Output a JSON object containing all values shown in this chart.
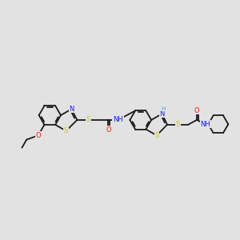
{
  "bg_color": "#e2e2e2",
  "line_color": "#1a1a1a",
  "bond_lw": 1.3,
  "atom_colors": {
    "N": "#1414ff",
    "O": "#ff1414",
    "S": "#c8c800",
    "H": "#44aaaa"
  },
  "font_size": 6.0,
  "fig_width": 3.0,
  "fig_height": 3.0
}
